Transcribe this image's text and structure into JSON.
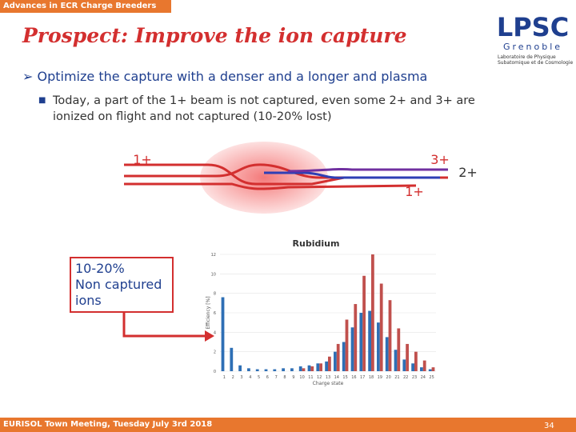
{
  "header": {
    "section": "Advances in ECR Charge Breeders",
    "title": "Prospect: Improve the ion capture"
  },
  "logo": {
    "name": "LPSC",
    "city": "Grenoble",
    "lines": [
      "Laboratoire de Physique",
      "Subatomique et de Cosmologie"
    ]
  },
  "bullets": [
    {
      "text": "Optimize the capture with a denser and a longer and plasma",
      "sub": [
        "Today, a part of the  1+ beam is not captured, even some 2+ and 3+ are ionized on flight and not captured (10-20% lost)"
      ]
    }
  ],
  "diagram": {
    "labels": [
      "1+",
      "3+",
      "1+",
      "2+"
    ]
  },
  "callout": {
    "lines": [
      "10-20%",
      "Non captured",
      "ions"
    ]
  },
  "chart_data": {
    "type": "bar",
    "title": "Rubidium",
    "x_label": "Charge state",
    "y_label": "Efficiency [%]",
    "categories": [
      "1",
      "2",
      "3",
      "4",
      "5",
      "6",
      "7",
      "8",
      "9",
      "10",
      "11",
      "12",
      "13",
      "14",
      "15",
      "16",
      "17",
      "18",
      "19",
      "20",
      "21",
      "22",
      "23",
      "24",
      "25"
    ],
    "series": [
      {
        "color": "#2e6fb5",
        "values": [
          7.6,
          2.4,
          0.6,
          0.3,
          0.2,
          0.2,
          0.2,
          0.3,
          0.3,
          0.5,
          0.6,
          0.8,
          1.0,
          2.0,
          3.0,
          4.5,
          6.0,
          6.2,
          5.0,
          3.5,
          2.2,
          1.2,
          0.8,
          0.4,
          0.2
        ]
      },
      {
        "color": "#c0504d",
        "values": [
          0,
          0,
          0,
          0,
          0,
          0,
          0,
          0,
          0,
          0.3,
          0.5,
          0.8,
          1.5,
          2.8,
          5.3,
          6.9,
          9.8,
          12,
          9,
          7.3,
          4.4,
          2.8,
          2,
          1.1,
          0.4
        ]
      }
    ],
    "ylim": [
      0,
      12
    ],
    "yticks": [
      0,
      2,
      4,
      6,
      8,
      10,
      12
    ],
    "grid": true
  },
  "footer": {
    "event": "EURISOL Town Meeting, Tuesday July 3rd 2018",
    "page": "34"
  }
}
